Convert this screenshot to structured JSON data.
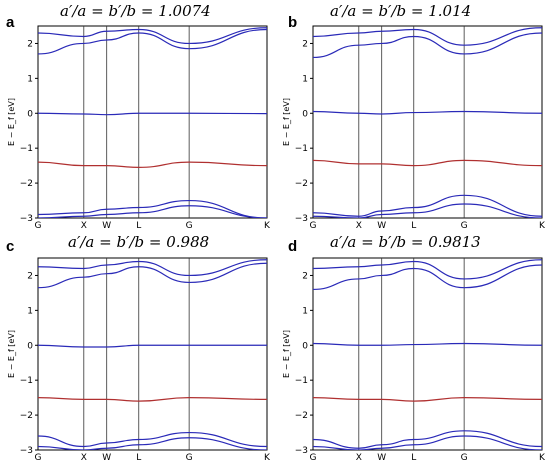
{
  "chart_data": [
    {
      "type": "line",
      "panel": "a",
      "title": "a′/a = b′/b = 1.0074",
      "ylabel": "E − E_f [eV]",
      "xlabel": "",
      "x_ticks": [
        "G",
        "X",
        "W",
        "L",
        "G",
        "K"
      ],
      "x_tick_positions": [
        0,
        1,
        1.5,
        2.2,
        3.3,
        5.0
      ],
      "ylim": [
        -3,
        2.5
      ],
      "y_ticks": [
        -3,
        -2,
        -1,
        0,
        1,
        2
      ],
      "grid": false,
      "series": [
        {
          "color": "#2a2ab8",
          "x": [
            0,
            1,
            1.5,
            2.2,
            3.3,
            5.0
          ],
          "values": [
            0.0,
            -0.02,
            -0.04,
            0.0,
            0.0,
            -0.01
          ]
        },
        {
          "color": "#b03030",
          "x": [
            0,
            1,
            1.5,
            2.2,
            3.3,
            5.0
          ],
          "values": [
            -1.4,
            -1.5,
            -1.5,
            -1.55,
            -1.4,
            -1.5
          ]
        },
        {
          "color": "#2a2ab8",
          "x": [
            0,
            1,
            1.5,
            2.2,
            3.3,
            5.0
          ],
          "values": [
            1.7,
            2.0,
            2.1,
            2.3,
            1.85,
            2.4
          ]
        },
        {
          "color": "#2a2ab8",
          "x": [
            0,
            1,
            1.5,
            2.2,
            3.3,
            5.0
          ],
          "values": [
            2.3,
            2.2,
            2.35,
            2.4,
            2.0,
            2.45
          ]
        },
        {
          "color": "#2a2ab8",
          "x": [
            0,
            1,
            1.5,
            2.2,
            3.3,
            5.0
          ],
          "values": [
            -2.9,
            -2.85,
            -2.75,
            -2.7,
            -2.5,
            -3.0
          ]
        },
        {
          "color": "#2a2ab8",
          "x": [
            0,
            1,
            1.5,
            2.2,
            3.3,
            5.0
          ],
          "values": [
            -3.0,
            -2.95,
            -2.9,
            -2.85,
            -2.65,
            -3.0
          ]
        }
      ]
    },
    {
      "type": "line",
      "panel": "b",
      "title": "a′/a = b′/b = 1.014",
      "ylabel": "E − E_f [eV]",
      "xlabel": "",
      "x_ticks": [
        "G",
        "X",
        "W",
        "L",
        "G",
        "K"
      ],
      "x_tick_positions": [
        0,
        1,
        1.5,
        2.2,
        3.3,
        5.0
      ],
      "ylim": [
        -3,
        2.5
      ],
      "y_ticks": [
        -3,
        -2,
        -1,
        0,
        1,
        2
      ],
      "grid": false,
      "series": [
        {
          "color": "#2a2ab8",
          "x": [
            0,
            1,
            1.5,
            2.2,
            3.3,
            5.0
          ],
          "values": [
            0.05,
            0.0,
            -0.02,
            0.02,
            0.05,
            0.0
          ]
        },
        {
          "color": "#b03030",
          "x": [
            0,
            1,
            1.5,
            2.2,
            3.3,
            5.0
          ],
          "values": [
            -1.35,
            -1.45,
            -1.45,
            -1.5,
            -1.35,
            -1.5
          ]
        },
        {
          "color": "#2a2ab8",
          "x": [
            0,
            1,
            1.5,
            2.2,
            3.3,
            5.0
          ],
          "values": [
            1.6,
            1.95,
            2.0,
            2.2,
            1.7,
            2.3
          ]
        },
        {
          "color": "#2a2ab8",
          "x": [
            0,
            1,
            1.5,
            2.2,
            3.3,
            5.0
          ],
          "values": [
            2.2,
            2.3,
            2.35,
            2.4,
            1.95,
            2.45
          ]
        },
        {
          "color": "#2a2ab8",
          "x": [
            0,
            1,
            1.5,
            2.2,
            3.3,
            5.0
          ],
          "values": [
            -2.85,
            -2.95,
            -2.8,
            -2.7,
            -2.35,
            -2.95
          ]
        },
        {
          "color": "#2a2ab8",
          "x": [
            0,
            1,
            1.5,
            2.2,
            3.3,
            5.0
          ],
          "values": [
            -2.95,
            -3.0,
            -2.9,
            -2.85,
            -2.6,
            -3.0
          ]
        }
      ]
    },
    {
      "type": "line",
      "panel": "c",
      "title": "a′/a = b′/b = 0.988",
      "ylabel": "E − E_f [eV]",
      "xlabel": "",
      "x_ticks": [
        "G",
        "X",
        "W",
        "L",
        "G",
        "K"
      ],
      "x_tick_positions": [
        0,
        1,
        1.5,
        2.2,
        3.3,
        5.0
      ],
      "ylim": [
        -3,
        2.5
      ],
      "y_ticks": [
        -3,
        -2,
        -1,
        0,
        1,
        2
      ],
      "grid": false,
      "series": [
        {
          "color": "#2a2ab8",
          "x": [
            0,
            1,
            1.5,
            2.2,
            3.3,
            5.0
          ],
          "values": [
            0.0,
            -0.05,
            -0.05,
            0.0,
            0.0,
            0.0
          ]
        },
        {
          "color": "#b03030",
          "x": [
            0,
            1,
            1.5,
            2.2,
            3.3,
            5.0
          ],
          "values": [
            -1.5,
            -1.55,
            -1.55,
            -1.6,
            -1.5,
            -1.55
          ]
        },
        {
          "color": "#2a2ab8",
          "x": [
            0,
            1,
            1.5,
            2.2,
            3.3,
            5.0
          ],
          "values": [
            1.65,
            1.95,
            2.05,
            2.25,
            1.8,
            2.35
          ]
        },
        {
          "color": "#2a2ab8",
          "x": [
            0,
            1,
            1.5,
            2.2,
            3.3,
            5.0
          ],
          "values": [
            2.25,
            2.2,
            2.3,
            2.4,
            2.0,
            2.45
          ]
        },
        {
          "color": "#2a2ab8",
          "x": [
            0,
            1,
            1.5,
            2.2,
            3.3,
            5.0
          ],
          "values": [
            -2.6,
            -2.9,
            -2.8,
            -2.7,
            -2.5,
            -2.9
          ]
        },
        {
          "color": "#2a2ab8",
          "x": [
            0,
            1,
            1.5,
            2.2,
            3.3,
            5.0
          ],
          "values": [
            -2.9,
            -3.0,
            -2.95,
            -2.85,
            -2.65,
            -3.0
          ]
        }
      ]
    },
    {
      "type": "line",
      "panel": "d",
      "title": "a′/a = b′/b = 0.9813",
      "ylabel": "E − E_f [eV]",
      "xlabel": "",
      "x_ticks": [
        "G",
        "X",
        "W",
        "L",
        "G",
        "K"
      ],
      "x_tick_positions": [
        0,
        1,
        1.5,
        2.2,
        3.3,
        5.0
      ],
      "ylim": [
        -3,
        2.5
      ],
      "y_ticks": [
        -3,
        -2,
        -1,
        0,
        1,
        2
      ],
      "grid": false,
      "series": [
        {
          "color": "#2a2ab8",
          "x": [
            0,
            1,
            1.5,
            2.2,
            3.3,
            5.0
          ],
          "values": [
            0.05,
            0.0,
            0.0,
            0.02,
            0.05,
            0.0
          ]
        },
        {
          "color": "#b03030",
          "x": [
            0,
            1,
            1.5,
            2.2,
            3.3,
            5.0
          ],
          "values": [
            -1.5,
            -1.55,
            -1.55,
            -1.6,
            -1.5,
            -1.55
          ]
        },
        {
          "color": "#2a2ab8",
          "x": [
            0,
            1,
            1.5,
            2.2,
            3.3,
            5.0
          ],
          "values": [
            1.6,
            1.9,
            2.0,
            2.2,
            1.65,
            2.3
          ]
        },
        {
          "color": "#2a2ab8",
          "x": [
            0,
            1,
            1.5,
            2.2,
            3.3,
            5.0
          ],
          "values": [
            2.2,
            2.25,
            2.3,
            2.4,
            1.9,
            2.45
          ]
        },
        {
          "color": "#2a2ab8",
          "x": [
            0,
            1,
            1.5,
            2.2,
            3.3,
            5.0
          ],
          "values": [
            -2.7,
            -2.95,
            -2.85,
            -2.7,
            -2.45,
            -2.9
          ]
        },
        {
          "color": "#2a2ab8",
          "x": [
            0,
            1,
            1.5,
            2.2,
            3.3,
            5.0
          ],
          "values": [
            -2.9,
            -3.0,
            -2.95,
            -2.85,
            -2.6,
            -3.0
          ]
        }
      ]
    }
  ]
}
